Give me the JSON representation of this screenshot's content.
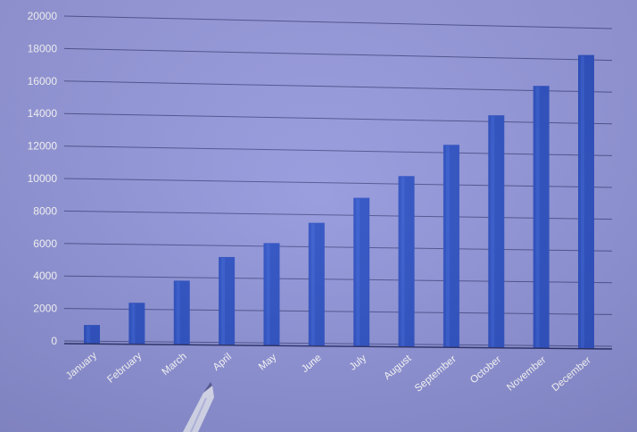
{
  "chart_data": {
    "type": "bar",
    "categories": [
      "January",
      "February",
      "March",
      "April",
      "May",
      "June",
      "July",
      "August",
      "September",
      "October",
      "November",
      "December"
    ],
    "values": [
      1000,
      2400,
      3800,
      5300,
      6200,
      7500,
      9100,
      10500,
      12500,
      14400,
      16300,
      18300
    ],
    "title": "",
    "xlabel": "",
    "ylabel": "",
    "ylim": [
      0,
      20000
    ],
    "yticks": [
      "0",
      "2000",
      "4000",
      "6000",
      "8000",
      "10000",
      "12000",
      "14000",
      "16000",
      "18000",
      "20000"
    ],
    "grid": true,
    "legend": "none",
    "bar_color": "#2f52c4",
    "bar_highlight": "#3f66d8"
  }
}
